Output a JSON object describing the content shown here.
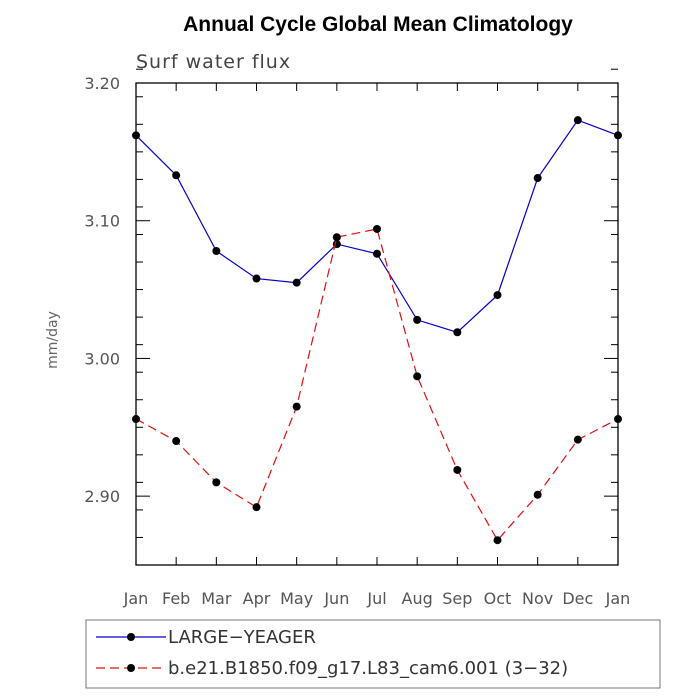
{
  "chart_data": {
    "type": "line",
    "title": "Annual Cycle Global Mean Climatology",
    "subtitle": "Surf water flux",
    "xlabel": "",
    "ylabel": "mm/day",
    "categories": [
      "Jan",
      "Feb",
      "Mar",
      "Apr",
      "May",
      "Jun",
      "Jul",
      "Aug",
      "Sep",
      "Oct",
      "Nov",
      "Dec",
      "Jan"
    ],
    "ylim": [
      2.85,
      3.2
    ],
    "yticks": [
      2.9,
      3.0,
      3.1,
      3.2
    ],
    "ytick_labels": [
      "2.90",
      "3.00",
      "3.10",
      "3.20"
    ],
    "series": [
      {
        "name": "LARGE−YEAGER",
        "color": "#0000cc",
        "dash": "solid",
        "values": [
          3.162,
          3.133,
          3.078,
          3.058,
          3.055,
          3.083,
          3.076,
          3.028,
          3.019,
          3.046,
          3.131,
          3.173,
          3.162
        ]
      },
      {
        "name": "b.e21.B1850.f09_g17.L83_cam6.001 (3−32)",
        "color": "#e01010",
        "dash": "dashed",
        "values": [
          2.956,
          2.94,
          2.91,
          2.892,
          2.965,
          3.088,
          3.094,
          2.987,
          2.919,
          2.868,
          2.901,
          2.941,
          2.956
        ]
      }
    ],
    "legend_position": "bottom-left"
  }
}
